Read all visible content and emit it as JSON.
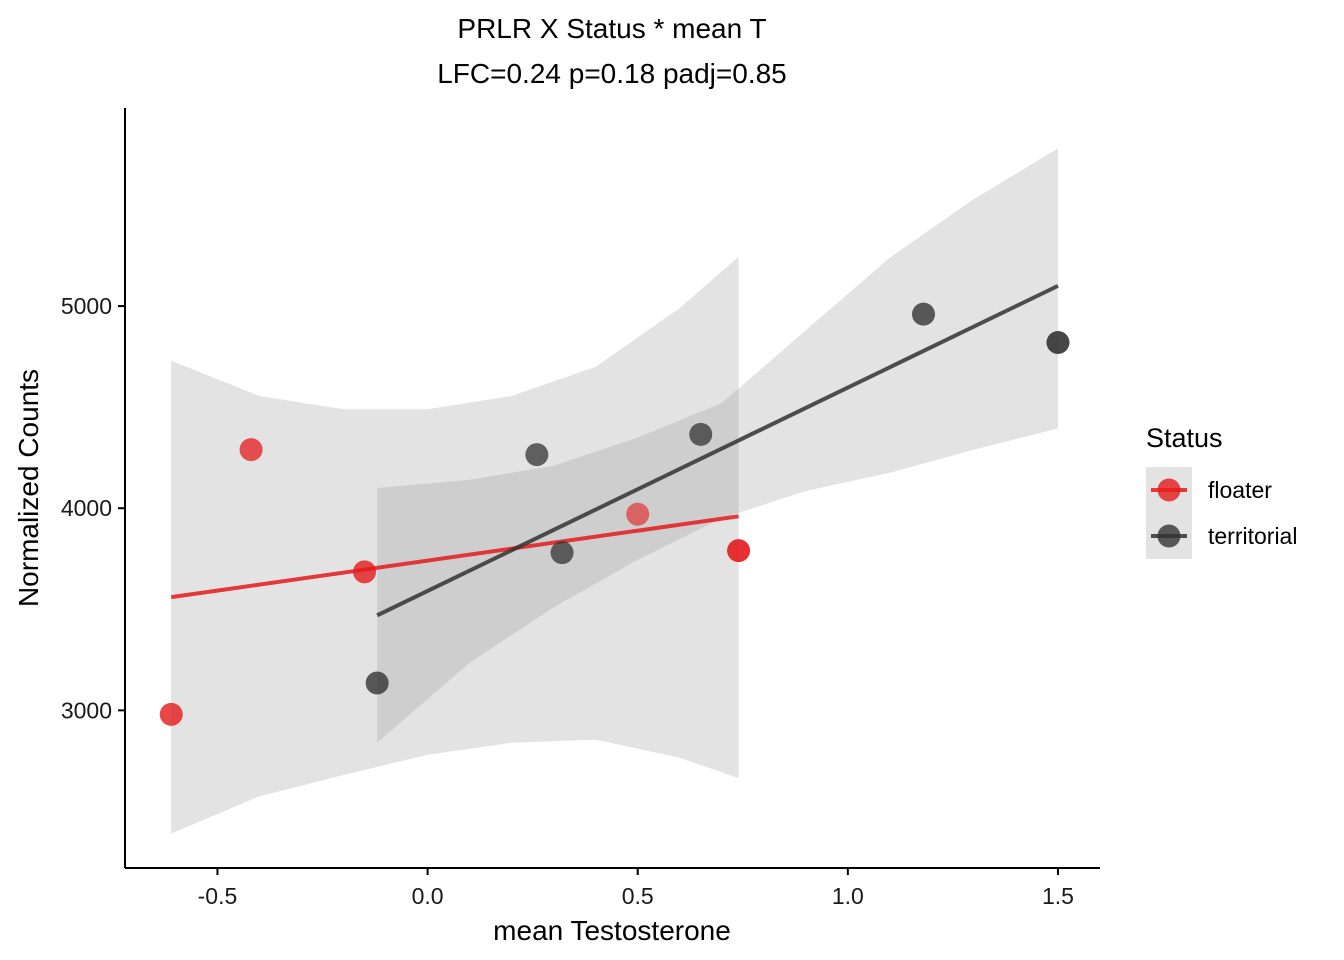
{
  "chart_data": {
    "type": "scatter",
    "title": "PRLR X Status * mean T",
    "subtitle": "LFC=0.24 p=0.18 padj=0.85",
    "xlabel": "mean Testosterone",
    "ylabel": "Normalized Counts",
    "xlim": [
      -0.72,
      1.6
    ],
    "ylim": [
      2220,
      5980
    ],
    "x_ticks": [
      -0.5,
      0.0,
      0.5,
      1.0,
      1.5
    ],
    "x_tick_labels": [
      "-0.5",
      "0.0",
      "0.5",
      "1.0",
      "1.5"
    ],
    "y_ticks": [
      3000,
      4000,
      5000
    ],
    "y_tick_labels": [
      "3000",
      "4000",
      "5000"
    ],
    "grid": false,
    "legend": {
      "title": "Status",
      "position": "right"
    },
    "series": [
      {
        "name": "floater",
        "color": "#e41a1c",
        "points": [
          {
            "x": -0.61,
            "y": 2980,
            "alpha": 0.8
          },
          {
            "x": -0.42,
            "y": 4290,
            "alpha": 0.75
          },
          {
            "x": -0.15,
            "y": 3685,
            "alpha": 0.8
          },
          {
            "x": 0.5,
            "y": 3970,
            "alpha": 0.6
          },
          {
            "x": 0.74,
            "y": 3790,
            "alpha": 0.9
          }
        ],
        "fit": {
          "x": [
            -0.61,
            0.74
          ],
          "y": [
            3560,
            3960
          ],
          "band_upper": [
            [
              -0.61,
              4730
            ],
            [
              -0.4,
              4555
            ],
            [
              -0.2,
              4490
            ],
            [
              0.0,
              4490
            ],
            [
              0.2,
              4555
            ],
            [
              0.4,
              4700
            ],
            [
              0.6,
              4990
            ],
            [
              0.74,
              5245
            ]
          ],
          "band_lower": [
            [
              -0.61,
              2390
            ],
            [
              -0.4,
              2575
            ],
            [
              -0.2,
              2680
            ],
            [
              0.0,
              2780
            ],
            [
              0.2,
              2840
            ],
            [
              0.4,
              2855
            ],
            [
              0.6,
              2765
            ],
            [
              0.74,
              2665
            ]
          ]
        }
      },
      {
        "name": "territorial",
        "color": "#333333",
        "points": [
          {
            "x": -0.12,
            "y": 3135,
            "alpha": 0.8
          },
          {
            "x": 0.26,
            "y": 4265,
            "alpha": 0.75
          },
          {
            "x": 0.32,
            "y": 3780,
            "alpha": 0.75
          },
          {
            "x": 0.65,
            "y": 4365,
            "alpha": 0.75
          },
          {
            "x": 1.18,
            "y": 4960,
            "alpha": 0.8
          },
          {
            "x": 1.5,
            "y": 4820,
            "alpha": 0.9
          }
        ],
        "fit": {
          "x": [
            -0.12,
            1.5
          ],
          "y": [
            3470,
            5100
          ],
          "band_upper": [
            [
              -0.12,
              4100
            ],
            [
              0.1,
              4140
            ],
            [
              0.3,
              4210
            ],
            [
              0.5,
              4350
            ],
            [
              0.7,
              4520
            ],
            [
              0.9,
              4880
            ],
            [
              1.1,
              5240
            ],
            [
              1.3,
              5530
            ],
            [
              1.5,
              5780
            ]
          ],
          "band_lower": [
            [
              -0.12,
              2840
            ],
            [
              0.1,
              3235
            ],
            [
              0.3,
              3510
            ],
            [
              0.5,
              3745
            ],
            [
              0.7,
              3950
            ],
            [
              0.9,
              4085
            ],
            [
              1.1,
              4175
            ],
            [
              1.3,
              4290
            ],
            [
              1.5,
              4395
            ]
          ]
        }
      }
    ]
  }
}
